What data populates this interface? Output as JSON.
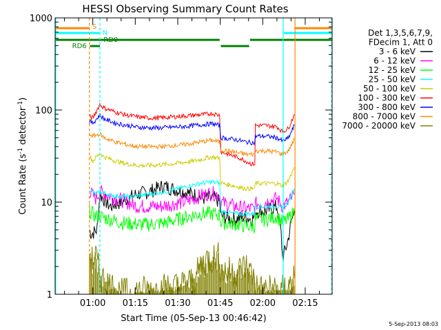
{
  "chart_data": {
    "type": "line",
    "title": "HESSI Observing Summary Count Rates",
    "xlabel": "Start Time (05-Sep-13 00:46:42)",
    "ylabel": "Count Rate (s⁻¹ detector⁻¹)",
    "ylabel_main": "Count Rate (s",
    "ylabel_sup1": "-1",
    "ylabel_mid": " detector",
    "ylabel_sup2": "-1",
    "ylabel_end": ")",
    "y_scale": "log",
    "ylim": [
      1,
      1000
    ],
    "xlim_minutes": [
      46.7,
      144.5
    ],
    "x_ticks": [
      {
        "label": "01:00",
        "minutes": 60
      },
      {
        "label": "01:15",
        "minutes": 75
      },
      {
        "label": "01:30",
        "minutes": 90
      },
      {
        "label": "01:45",
        "minutes": 105
      },
      {
        "label": "02:00",
        "minutes": 120
      },
      {
        "label": "02:15",
        "minutes": 135
      }
    ],
    "y_ticks": [
      {
        "label": "1",
        "value": 1
      },
      {
        "label": "10",
        "value": 10
      },
      {
        "label": "100",
        "value": 100
      },
      {
        "label": "1000",
        "value": 1000
      }
    ],
    "legend_header": [
      "Det 1,3,5,6,7,9,",
      "FDecim 1, Att 0"
    ],
    "series": [
      {
        "name": "3 - 6 keV",
        "color": "#000000",
        "points": [
          [
            58.8,
            5
          ],
          [
            59.5,
            4.5
          ],
          [
            61.5,
            5
          ],
          [
            62.5,
            12
          ],
          [
            66,
            9
          ],
          [
            70,
            10
          ],
          [
            75,
            12
          ],
          [
            80,
            13
          ],
          [
            85,
            15
          ],
          [
            88,
            14
          ],
          [
            92,
            13
          ],
          [
            96,
            12
          ],
          [
            99,
            11
          ],
          [
            101,
            11
          ],
          [
            103,
            11
          ],
          [
            104.8,
            10
          ],
          [
            105.2,
            7
          ],
          [
            110,
            6.5
          ],
          [
            114,
            7
          ],
          [
            116,
            6.5
          ],
          [
            117.2,
            7
          ],
          [
            117.4,
            8
          ],
          [
            121,
            8
          ],
          [
            125,
            9
          ],
          [
            126.5,
            4.5
          ],
          [
            127,
            2.5
          ],
          [
            128,
            3
          ],
          [
            129,
            4
          ],
          [
            130,
            6
          ],
          [
            131.2,
            8
          ]
        ]
      },
      {
        "name": "6 - 12 keV",
        "color": "#ff00ff",
        "points": [
          [
            58.8,
            13
          ],
          [
            61,
            11
          ],
          [
            62.5,
            13
          ],
          [
            68,
            11
          ],
          [
            72,
            10
          ],
          [
            76,
            9
          ],
          [
            80,
            9
          ],
          [
            84,
            9
          ],
          [
            88,
            9.5
          ],
          [
            92,
            10
          ],
          [
            96,
            11
          ],
          [
            99,
            12
          ],
          [
            102,
            12.5
          ],
          [
            104.8,
            12
          ],
          [
            105.2,
            10
          ],
          [
            110,
            9
          ],
          [
            114,
            8.5
          ],
          [
            117.2,
            8.5
          ],
          [
            117.4,
            9.5
          ],
          [
            121,
            10
          ],
          [
            125,
            11
          ],
          [
            127,
            9
          ],
          [
            129,
            10
          ],
          [
            131.2,
            12
          ]
        ]
      },
      {
        "name": "12 - 25 keV",
        "color": "#00ff00",
        "points": [
          [
            58.8,
            8
          ],
          [
            61,
            7
          ],
          [
            62.5,
            7
          ],
          [
            66,
            6.5
          ],
          [
            70,
            6
          ],
          [
            74,
            5.8
          ],
          [
            78,
            5.7
          ],
          [
            82,
            5.8
          ],
          [
            86,
            6
          ],
          [
            90,
            6.5
          ],
          [
            94,
            7
          ],
          [
            98,
            7.5
          ],
          [
            102,
            7.5
          ],
          [
            104.8,
            7.2
          ],
          [
            105.2,
            6
          ],
          [
            110,
            5.8
          ],
          [
            114,
            5.5
          ],
          [
            117.2,
            5.5
          ],
          [
            117.4,
            6.5
          ],
          [
            121,
            6.5
          ],
          [
            125,
            7
          ],
          [
            127,
            6
          ],
          [
            129,
            6.5
          ],
          [
            131.2,
            8
          ]
        ]
      },
      {
        "name": "25 - 50 keV",
        "color": "#00ffff",
        "points": [
          [
            58.8,
            14
          ],
          [
            61,
            12
          ],
          [
            62.5,
            13
          ],
          [
            66,
            12
          ],
          [
            70,
            11.5
          ],
          [
            74,
            11.5
          ],
          [
            78,
            12
          ],
          [
            82,
            12.5
          ],
          [
            86,
            13
          ],
          [
            90,
            14
          ],
          [
            94,
            15
          ],
          [
            98,
            16
          ],
          [
            102,
            16.5
          ],
          [
            104.8,
            16
          ],
          [
            105.2,
            8
          ],
          [
            110,
            7.5
          ],
          [
            114,
            7.5
          ],
          [
            117.2,
            7.5
          ],
          [
            117.4,
            9
          ],
          [
            121,
            9
          ],
          [
            125,
            9
          ],
          [
            127,
            8.5
          ],
          [
            129,
            10
          ],
          [
            131.2,
            14
          ]
        ]
      },
      {
        "name": "50 - 100 keV",
        "color": "#cccc00",
        "points": [
          [
            58.8,
            32
          ],
          [
            60,
            28
          ],
          [
            62.5,
            34
          ],
          [
            64,
            31
          ],
          [
            68,
            28
          ],
          [
            72,
            26
          ],
          [
            76,
            25
          ],
          [
            80,
            25
          ],
          [
            84,
            25.5
          ],
          [
            88,
            26
          ],
          [
            92,
            27
          ],
          [
            96,
            28
          ],
          [
            100,
            30
          ],
          [
            102,
            31
          ],
          [
            104.8,
            30
          ],
          [
            105.2,
            16
          ],
          [
            110,
            15
          ],
          [
            114,
            14
          ],
          [
            117.2,
            14
          ],
          [
            117.4,
            16
          ],
          [
            121,
            16
          ],
          [
            125,
            16
          ],
          [
            127,
            15
          ],
          [
            129,
            17
          ],
          [
            131.2,
            24
          ]
        ]
      },
      {
        "name": "100 - 300 keV",
        "color": "#ff0000",
        "points": [
          [
            58.8,
            85
          ],
          [
            60,
            82
          ],
          [
            62.5,
            115
          ],
          [
            64,
            105
          ],
          [
            68,
            95
          ],
          [
            72,
            88
          ],
          [
            76,
            84
          ],
          [
            80,
            82
          ],
          [
            84,
            82
          ],
          [
            88,
            84
          ],
          [
            92,
            86
          ],
          [
            96,
            88
          ],
          [
            100,
            90
          ],
          [
            102,
            92
          ],
          [
            104.8,
            88
          ],
          [
            105.2,
            35
          ],
          [
            108,
            33
          ],
          [
            112,
            30
          ],
          [
            116,
            26
          ],
          [
            117.2,
            26
          ],
          [
            117.4,
            68
          ],
          [
            121,
            68
          ],
          [
            125,
            66
          ],
          [
            127,
            58
          ],
          [
            129,
            63
          ],
          [
            131.2,
            90
          ]
        ]
      },
      {
        "name": "300 - 800 keV",
        "color": "#0000ff",
        "points": [
          [
            58.8,
            75
          ],
          [
            60,
            72
          ],
          [
            62.5,
            88
          ],
          [
            64,
            80
          ],
          [
            68,
            72
          ],
          [
            72,
            68
          ],
          [
            76,
            65
          ],
          [
            80,
            64
          ],
          [
            84,
            64
          ],
          [
            88,
            65
          ],
          [
            92,
            66
          ],
          [
            96,
            68
          ],
          [
            100,
            70
          ],
          [
            102,
            71
          ],
          [
            104.8,
            68
          ],
          [
            105.2,
            50
          ],
          [
            110,
            48
          ],
          [
            114,
            45
          ],
          [
            117.2,
            44
          ],
          [
            117.4,
            52
          ],
          [
            121,
            52
          ],
          [
            125,
            50
          ],
          [
            127,
            46
          ],
          [
            129,
            49
          ],
          [
            131.2,
            68
          ]
        ]
      },
      {
        "name": "800 - 7000 keV",
        "color": "#ff8800",
        "points": [
          [
            58.8,
            55
          ],
          [
            60,
            52
          ],
          [
            62.5,
            55
          ],
          [
            64,
            50
          ],
          [
            68,
            45
          ],
          [
            72,
            42
          ],
          [
            76,
            40
          ],
          [
            80,
            40
          ],
          [
            84,
            40
          ],
          [
            88,
            41
          ],
          [
            92,
            42
          ],
          [
            96,
            44
          ],
          [
            100,
            46
          ],
          [
            102,
            47
          ],
          [
            104.8,
            45
          ],
          [
            105.2,
            37
          ],
          [
            110,
            35
          ],
          [
            114,
            33
          ],
          [
            117.2,
            33
          ],
          [
            117.4,
            36
          ],
          [
            121,
            36
          ],
          [
            125,
            35
          ],
          [
            127,
            33
          ],
          [
            129,
            36
          ],
          [
            131.2,
            48
          ]
        ]
      },
      {
        "name": "7000 - 20000 keV",
        "color": "#808000",
        "points": [
          [
            58.8,
            2.8
          ],
          [
            59.5,
            2.2
          ],
          [
            61,
            2.6
          ],
          [
            62.5,
            1.6
          ],
          [
            64,
            1.4
          ],
          [
            70,
            1
          ],
          [
            80,
            1.1
          ],
          [
            90,
            1.2
          ],
          [
            96,
            1.4
          ],
          [
            98,
            2
          ],
          [
            100,
            2.4
          ],
          [
            104.8,
            2.5
          ],
          [
            105.2,
            1.8
          ],
          [
            110,
            1.7
          ],
          [
            114,
            2
          ],
          [
            117.2,
            1.5
          ],
          [
            117.4,
            1.2
          ],
          [
            120,
            1.1
          ],
          [
            125,
            1.1
          ],
          [
            127,
            1.1
          ],
          [
            129,
            1.2
          ],
          [
            131.2,
            1.5
          ]
        ]
      }
    ],
    "flags": [
      {
        "label": "S",
        "color": "#ff8800",
        "row": 1,
        "segments": [
          [
            46.7,
            58.8
          ],
          [
            131.2,
            144.5
          ]
        ]
      },
      {
        "label": "N",
        "color": "#00ffff",
        "row": 2,
        "segments": [
          [
            46.7,
            62.5
          ],
          [
            127.5,
            144.5
          ]
        ]
      },
      {
        "label": "RD0",
        "color": "#008000",
        "row": 3,
        "segments": [
          [
            46.7,
            104.8
          ],
          [
            115.5,
            144.5
          ]
        ]
      },
      {
        "label": "RD6",
        "color": "#008000",
        "row": 4,
        "segments": [
          [
            59,
            62.5
          ],
          [
            105.2,
            115.2
          ]
        ]
      }
    ],
    "vlines": [
      {
        "minutes": 58.8,
        "color": "#ff8800",
        "style": "dashed"
      },
      {
        "minutes": 62.5,
        "color": "#00ffff",
        "style": "dashed"
      },
      {
        "minutes": 46.9,
        "color": "#00ffff",
        "style": "solid"
      },
      {
        "minutes": 127.2,
        "color": "#00ffff",
        "style": "solid"
      },
      {
        "minutes": 131.4,
        "color": "#ff8800",
        "style": "solid"
      },
      {
        "minutes": 144.3,
        "color": "#00ffff",
        "style": "dashed"
      }
    ],
    "legend_placement": "right",
    "grid": false
  },
  "footer": {
    "timestamp": "5-Sep-2013 08:03"
  }
}
